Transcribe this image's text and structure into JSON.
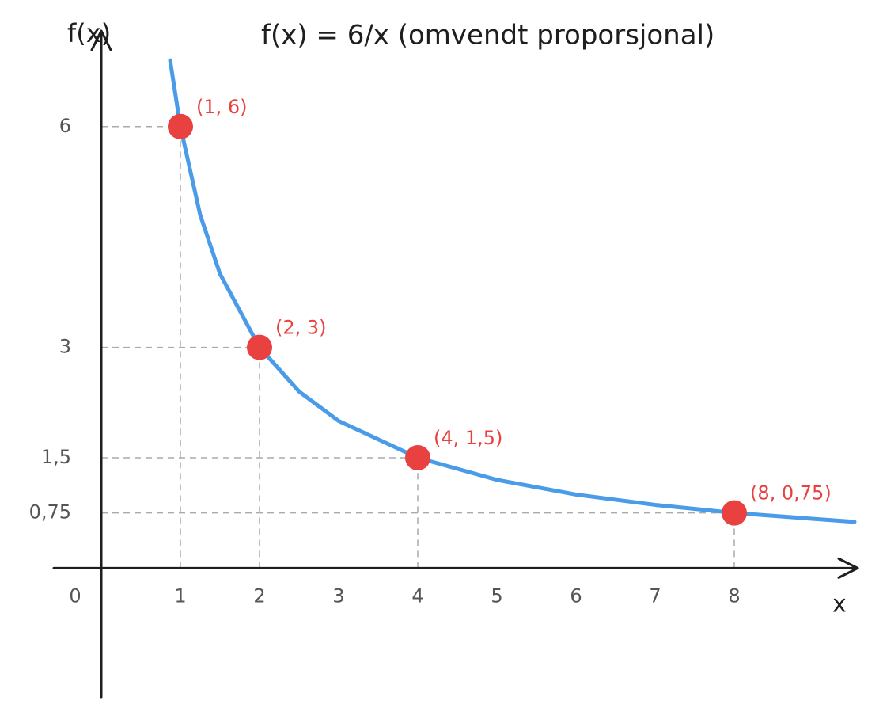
{
  "chart_data": {
    "type": "line",
    "title": "f(x) = 6/x   (omvendt proporsjonal)",
    "y_label": "f(x)",
    "x_label": "x",
    "xlim": [
      -0.58,
      9.6
    ],
    "ylim": [
      -1.75,
      7.3
    ],
    "xticks": [
      0,
      1,
      2,
      3,
      4,
      5,
      6,
      7,
      8
    ],
    "yticks": [
      6,
      3,
      {
        "value": 1.5,
        "label": "1,5"
      },
      {
        "value": 0.75,
        "label": "0,75"
      }
    ],
    "guides": true,
    "curve": {
      "color": "#4a9be8",
      "x": [
        0.87,
        1,
        1.25,
        1.5,
        2,
        2.5,
        3,
        4,
        5,
        6,
        7,
        8,
        9,
        9.52
      ],
      "values": [
        6.9,
        6,
        4.8,
        4,
        3,
        2.4,
        2,
        1.5,
        1.2,
        1,
        0.86,
        0.75,
        0.67,
        0.63
      ]
    },
    "points": {
      "color": "#e8413f",
      "x": [
        1,
        2,
        4,
        8
      ],
      "values": [
        6,
        3,
        1.5,
        0.75
      ],
      "value_labels": [
        "(1, 6)",
        "(2, 3)",
        "(4, 1,5)",
        "(8, 0,75)"
      ]
    }
  }
}
